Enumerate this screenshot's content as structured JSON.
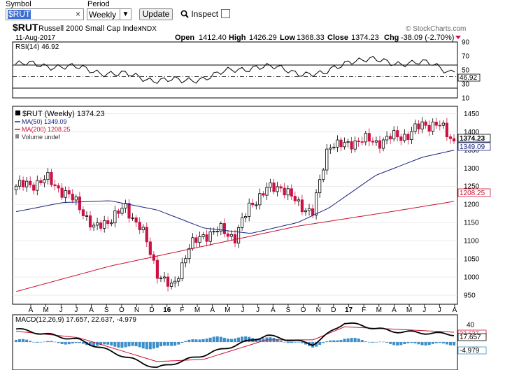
{
  "toolbar": {
    "symbol_label": "Symbol",
    "symbol_value": "$RUT",
    "clear_glyph": "×",
    "period_label": "Period",
    "period_value": "Weekly",
    "update_label": "Update",
    "inspect_label": "Inspect"
  },
  "header": {
    "symbol": "$RUT",
    "name": "Russell 2000 Small Cap Index",
    "exchange": "INDX",
    "date": "11-Aug-2017",
    "watermark": "© StockCharts.com",
    "open_label": "Open",
    "open": "1412.40",
    "high_label": "High",
    "high": "1426.29",
    "low_label": "Low",
    "low": "1368.33",
    "close_label": "Close",
    "close": "1374.23",
    "chg_label": "Chg",
    "chg": "-38.09 (-2.70%)"
  },
  "rsi": {
    "label": "RSI(14) 46.92",
    "current": "46.92",
    "ticks": [
      "90",
      "70",
      "50",
      "30",
      "10"
    ],
    "ylim": [
      10,
      90
    ],
    "levels": [
      70,
      30
    ]
  },
  "price": {
    "label": "$RUT (Weekly) 1374.23",
    "ma50_label": "MA(50) 1349.09",
    "ma200_label": "MA(200) 1208.25",
    "volume_label": "Volume undef",
    "ticks": [
      "1450",
      "1400",
      "1350",
      "1300",
      "1250",
      "1200",
      "1150",
      "1100",
      "1050",
      "1000",
      "950"
    ],
    "ylim": [
      925,
      1470
    ],
    "tags": {
      "close": "1374.23",
      "ma50": "1349.09",
      "ma200": "1208.25"
    }
  },
  "xaxis": {
    "labels": [
      "A",
      "M",
      "J",
      "J",
      "A",
      "S",
      "O",
      "N",
      "D",
      "16",
      "F",
      "M",
      "A",
      "M",
      "J",
      "J",
      "A",
      "S",
      "O",
      "N",
      "D",
      "17",
      "F",
      "M",
      "A",
      "M",
      "J",
      "J",
      "A"
    ]
  },
  "macd": {
    "label": "MACD(12,26,9) 17.657, 22.637, -4.979",
    "ticks": [
      "40",
      "20",
      "-20"
    ],
    "tags": {
      "signal": "22.637",
      "macd": "17.657",
      "hist": "-4.979"
    }
  },
  "colors": {
    "up": "#000000",
    "down": "#cc1144",
    "ma50": "#1a237e",
    "ma200": "#cc1133",
    "macd_line": "#000000",
    "signal_line": "#cc1133",
    "hist": "#3c8fc8"
  },
  "chart_data": [
    {
      "type": "line",
      "title": "RSI(14) 46.92",
      "x": [
        "2016-04",
        "2015-06",
        "2015-09",
        "2016-02",
        "2016-06",
        "2016-10",
        "2017-01",
        "2017-06",
        "2017-08"
      ],
      "series": [
        {
          "name": "RSI(14)",
          "values": [
            58,
            56,
            38,
            33,
            56,
            42,
            65,
            58,
            46.92
          ]
        }
      ],
      "ylim": [
        10,
        90
      ]
    },
    {
      "type": "line",
      "title": "$RUT (Weekly) 1374.23",
      "series": [
        {
          "name": "$RUT (Weekly)",
          "x": [
            "2015-04",
            "2015-05",
            "2015-06",
            "2015-07",
            "2015-08",
            "2015-09",
            "2015-10",
            "2015-11",
            "2015-12",
            "2016-01",
            "2016-02",
            "2016-03",
            "2016-04",
            "2016-05",
            "2016-06",
            "2016-07",
            "2016-08",
            "2016-09",
            "2016-10",
            "2016-11",
            "2016-12",
            "2017-01",
            "2017-02",
            "2017-03",
            "2017-04",
            "2017-05",
            "2017-06",
            "2017-07",
            "2017-08"
          ],
          "values": [
            1250,
            1255,
            1270,
            1235,
            1200,
            1130,
            1160,
            1190,
            1135,
            1015,
            965,
            1080,
            1115,
            1130,
            1110,
            1200,
            1240,
            1250,
            1200,
            1180,
            1370,
            1360,
            1380,
            1370,
            1385,
            1390,
            1420,
            1420,
            1374.23
          ]
        },
        {
          "name": "MA(50)",
          "x": [
            "2015-04",
            "2015-07",
            "2015-10",
            "2016-01",
            "2016-04",
            "2016-07",
            "2016-10",
            "2016-12",
            "2017-03",
            "2017-06",
            "2017-08"
          ],
          "values": [
            1180,
            1205,
            1210,
            1185,
            1135,
            1120,
            1150,
            1190,
            1280,
            1330,
            1349.09
          ]
        },
        {
          "name": "MA(200)",
          "x": [
            "2015-04",
            "2015-10",
            "2016-04",
            "2016-10",
            "2017-04",
            "2017-08"
          ],
          "values": [
            960,
            1030,
            1085,
            1140,
            1180,
            1208.25
          ]
        }
      ],
      "ylim": [
        925,
        1470
      ]
    },
    {
      "type": "line",
      "title": "MACD(12,26,9) 17.657, 22.637, -4.979",
      "series": [
        {
          "name": "MACD",
          "x": [
            "2015-04",
            "2015-08",
            "2016-01",
            "2016-04",
            "2016-08",
            "2016-11",
            "2017-01",
            "2017-04",
            "2017-08"
          ],
          "values": [
            30,
            5,
            -60,
            -30,
            15,
            -5,
            45,
            25,
            17.657
          ]
        },
        {
          "name": "Signal",
          "x": [
            "2015-04",
            "2015-08",
            "2016-01",
            "2016-04",
            "2016-08",
            "2016-11",
            "2017-01",
            "2017-04",
            "2017-08"
          ],
          "values": [
            25,
            10,
            -45,
            -40,
            5,
            5,
            35,
            30,
            22.637
          ]
        },
        {
          "name": "Histogram",
          "x": [
            "2015-04",
            "2015-08",
            "2016-01",
            "2016-04",
            "2016-08",
            "2016-11",
            "2017-01",
            "2017-04",
            "2017-08"
          ],
          "values": [
            5,
            -5,
            -15,
            10,
            10,
            -10,
            10,
            -5,
            -4.979
          ]
        }
      ]
    }
  ]
}
